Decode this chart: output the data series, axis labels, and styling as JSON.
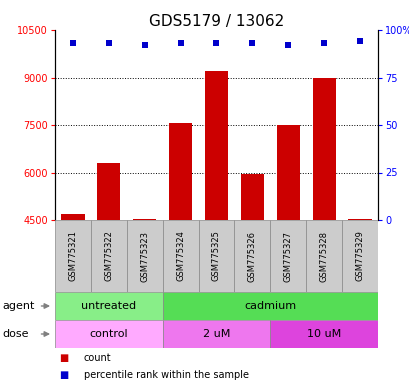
{
  "title": "GDS5179 / 13062",
  "samples": [
    "GSM775321",
    "GSM775322",
    "GSM775323",
    "GSM775324",
    "GSM775325",
    "GSM775326",
    "GSM775327",
    "GSM775328",
    "GSM775329"
  ],
  "counts": [
    4700,
    6300,
    4530,
    7550,
    9200,
    5950,
    7500,
    9000,
    4520
  ],
  "percentile_ranks": [
    93,
    93,
    92,
    93,
    93,
    93,
    92,
    93,
    94
  ],
  "ymin": 4500,
  "ymax": 10500,
  "yticks_left": [
    4500,
    6000,
    7500,
    9000,
    10500
  ],
  "yticks_right": [
    0,
    25,
    50,
    75,
    100
  ],
  "right_tick_labels": [
    "0",
    "25",
    "50",
    "75",
    "100%"
  ],
  "bar_color": "#cc0000",
  "dot_color": "#0000cc",
  "agent_row": [
    {
      "label": "untreated",
      "start": 0,
      "end": 3,
      "color": "#88ee88"
    },
    {
      "label": "cadmium",
      "start": 3,
      "end": 9,
      "color": "#55dd55"
    }
  ],
  "dose_row": [
    {
      "label": "control",
      "start": 0,
      "end": 3,
      "color": "#ffaaff"
    },
    {
      "label": "2 uM",
      "start": 3,
      "end": 6,
      "color": "#ee77ee"
    },
    {
      "label": "10 uM",
      "start": 6,
      "end": 9,
      "color": "#dd44dd"
    }
  ],
  "sample_bg": "#cccccc",
  "title_fontsize": 11,
  "tick_fontsize": 7,
  "sample_fontsize": 6,
  "row_label_fontsize": 8,
  "legend_fontsize": 7
}
